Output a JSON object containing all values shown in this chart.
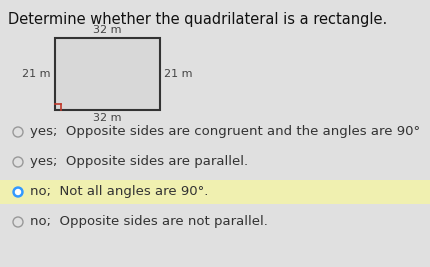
{
  "title": "Determine whether the quadrilateral is a rectangle.",
  "title_fontsize": 10.5,
  "bg_color": "#e0e0e0",
  "rect_color": "#333333",
  "rect_fill": "#d8d8d8",
  "corner_color": "#c0392b",
  "label_top": "32 m",
  "label_bottom": "32 m",
  "label_left": "21 m",
  "label_right": "21 m",
  "label_fontsize": 8.0,
  "options": [
    {
      "text": "yes;  Opposite sides are congruent and the angles are 90°",
      "selected": false
    },
    {
      "text": "yes;  Opposite sides are parallel.",
      "selected": false
    },
    {
      "text": "no;  Not all angles are 90°.",
      "selected": true
    },
    {
      "text": "no;  Opposite sides are not parallel.",
      "selected": false
    }
  ],
  "selected_color": "#3399ff",
  "unselected_color": "#999999",
  "highlight_color": "#f0f0b0",
  "option_fontsize": 9.5,
  "text_color": "#333333"
}
